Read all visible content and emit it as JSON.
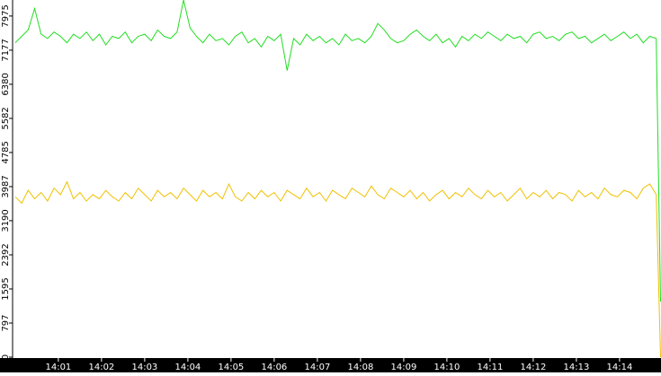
{
  "chart_data": {
    "type": "line",
    "x": [
      0,
      0.15,
      0.3,
      0.45,
      0.6,
      0.75,
      0.9,
      1.05,
      1.2,
      1.35,
      1.5,
      1.65,
      1.8,
      1.95,
      2.1,
      2.25,
      2.4,
      2.55,
      2.7,
      2.85,
      3,
      3.15,
      3.3,
      3.45,
      3.6,
      3.75,
      3.9,
      4.05,
      4.2,
      4.35,
      4.5,
      4.65,
      4.8,
      4.95,
      5.1,
      5.25,
      5.4,
      5.55,
      5.7,
      5.85,
      6,
      6.15,
      6.3,
      6.45,
      6.6,
      6.75,
      6.9,
      7.05,
      7.2,
      7.35,
      7.5,
      7.65,
      7.8,
      7.95,
      8.1,
      8.25,
      8.4,
      8.55,
      8.7,
      8.85,
      9,
      9.15,
      9.3,
      9.45,
      9.6,
      9.75,
      9.9,
      10.05,
      10.2,
      10.35,
      10.5,
      10.65,
      10.8,
      10.95,
      11.1,
      11.25,
      11.4,
      11.55,
      11.7,
      11.85,
      12,
      12.15,
      12.3,
      12.45,
      12.6,
      12.75,
      12.9,
      13.05,
      13.2,
      13.35,
      13.5,
      13.65,
      13.8,
      13.95,
      14.1,
      14.25,
      14.4,
      14.55,
      14.7,
      14.85,
      14.95
    ],
    "series": [
      {
        "color": "#22dd22",
        "values": [
          7350,
          7500,
          7650,
          8150,
          7550,
          7450,
          7600,
          7500,
          7350,
          7550,
          7450,
          7600,
          7400,
          7550,
          7300,
          7500,
          7450,
          7600,
          7350,
          7500,
          7550,
          7400,
          7650,
          7500,
          7450,
          7600,
          8350,
          7700,
          7500,
          7350,
          7550,
          7400,
          7450,
          7300,
          7500,
          7600,
          7350,
          7450,
          7250,
          7500,
          7400,
          7550,
          6700,
          7450,
          7300,
          7550,
          7400,
          7500,
          7350,
          7450,
          7300,
          7550,
          7400,
          7450,
          7350,
          7500,
          7800,
          7650,
          7450,
          7350,
          7400,
          7550,
          7650,
          7500,
          7400,
          7550,
          7350,
          7450,
          7250,
          7500,
          7400,
          7550,
          7450,
          7600,
          7500,
          7400,
          7550,
          7450,
          7500,
          7350,
          7550,
          7600,
          7450,
          7500,
          7400,
          7550,
          7600,
          7450,
          7500,
          7350,
          7450,
          7550,
          7400,
          7500,
          7600,
          7450,
          7550,
          7350,
          7500,
          7450,
          1300
        ]
      },
      {
        "color": "#f0c000",
        "values": [
          3750,
          3600,
          3900,
          3700,
          3850,
          3650,
          3950,
          3800,
          4100,
          3700,
          3850,
          3650,
          3800,
          3700,
          3900,
          3750,
          3650,
          3850,
          3700,
          3950,
          3800,
          3650,
          3900,
          3750,
          3850,
          3700,
          3950,
          3800,
          3650,
          3900,
          3750,
          3850,
          3700,
          4050,
          3750,
          3650,
          3850,
          3700,
          3900,
          3750,
          3850,
          3650,
          3900,
          3800,
          3700,
          3950,
          3750,
          3850,
          3650,
          3900,
          3800,
          3700,
          3950,
          3850,
          3750,
          4000,
          3800,
          3700,
          3950,
          3850,
          3750,
          3900,
          3700,
          3850,
          3650,
          3800,
          3900,
          3700,
          3850,
          3750,
          3950,
          3800,
          3700,
          3900,
          3750,
          3850,
          3650,
          3800,
          3950,
          3700,
          3850,
          3750,
          3900,
          3700,
          3850,
          3800,
          3650,
          3900,
          3750,
          3850,
          3700,
          3950,
          3800,
          3750,
          3900,
          3850,
          3700,
          3950,
          4050,
          3800,
          0
        ]
      }
    ],
    "xlim": [
      -0.06,
      14.96
    ],
    "xticks": [
      {
        "value": 1,
        "label": "14:01"
      },
      {
        "value": 2,
        "label": "14:02"
      },
      {
        "value": 3,
        "label": "14:03"
      },
      {
        "value": 4,
        "label": "14:04"
      },
      {
        "value": 5,
        "label": "14:05"
      },
      {
        "value": 6,
        "label": "14:06"
      },
      {
        "value": 7,
        "label": "14:07"
      },
      {
        "value": 8,
        "label": "14:08"
      },
      {
        "value": 9,
        "label": "14:09"
      },
      {
        "value": 10,
        "label": "14:10"
      },
      {
        "value": 11,
        "label": "14:11"
      },
      {
        "value": 12,
        "label": "14:12"
      },
      {
        "value": 13,
        "label": "14:13"
      },
      {
        "value": 14,
        "label": "14:14"
      }
    ],
    "ylim": [
      0,
      8350
    ],
    "yticks": [
      0,
      797,
      1595,
      2392,
      3190,
      3987,
      4785,
      5582,
      6380,
      7177,
      7975
    ]
  }
}
